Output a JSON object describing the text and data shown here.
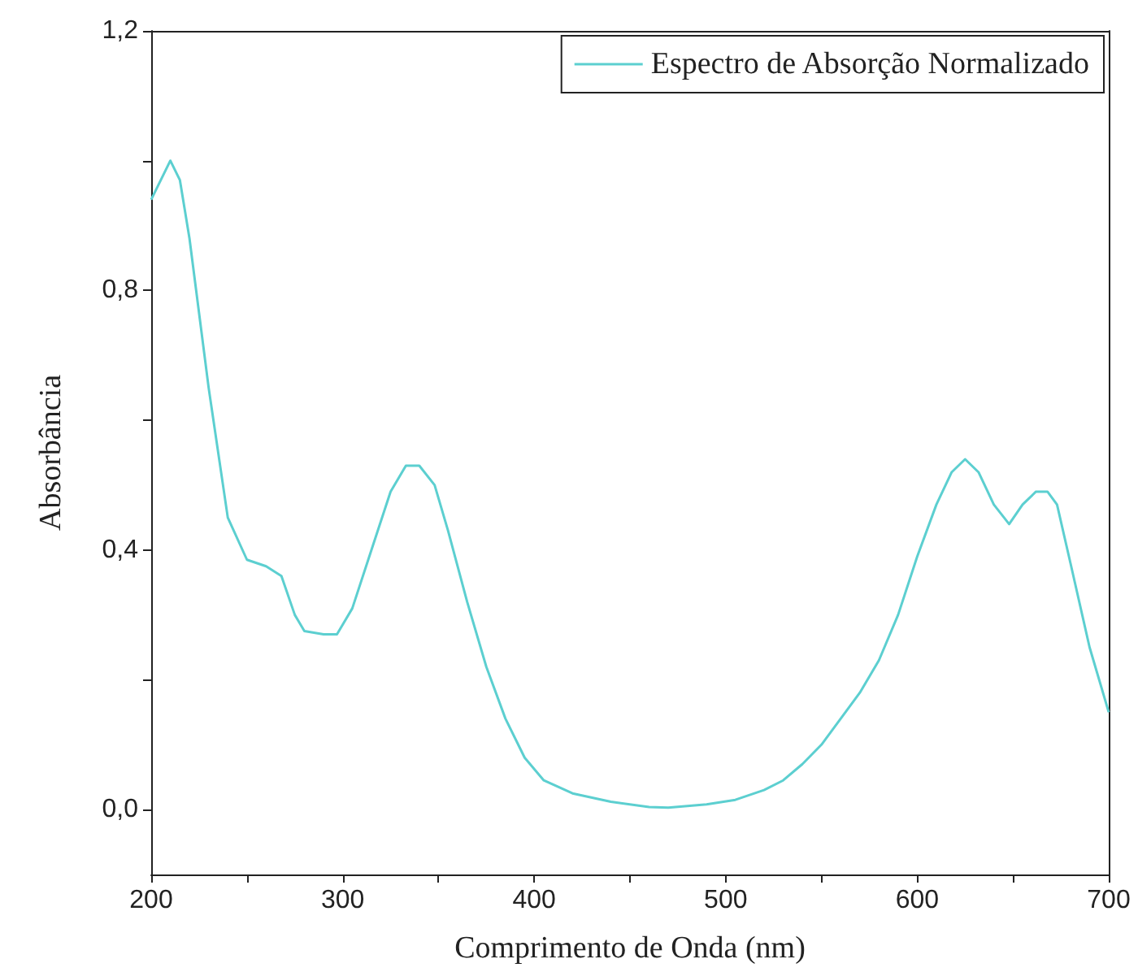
{
  "chart_data": {
    "type": "line",
    "xlabel": "Comprimento de Onda (nm)",
    "ylabel": "Absorbância",
    "legend": "top right",
    "grid": false,
    "marker": "none",
    "line_style": "solid",
    "xlim": [
      200,
      700
    ],
    "ylim": [
      -0.1,
      1.2
    ],
    "xticks": [
      200,
      {
        "value": 250,
        "label": null
      },
      300,
      {
        "value": 350,
        "label": null
      },
      400,
      {
        "value": 450,
        "label": null
      },
      500,
      {
        "value": 550,
        "label": null
      },
      600,
      {
        "value": 650,
        "label": null
      },
      700
    ],
    "yticks": [
      {
        "value": 0,
        "label": "0,0"
      },
      {
        "value": 0.2,
        "label": null
      },
      {
        "value": 0.4,
        "label": "0,4"
      },
      {
        "value": 0.6,
        "label": null
      },
      {
        "value": 0.8,
        "label": "0,8"
      },
      {
        "value": 1.0,
        "label": null
      },
      {
        "value": 1.2,
        "label": "1,2"
      }
    ],
    "series": [
      {
        "name": "Espectro de Absorção Normalizado",
        "color": "#5ccfd0",
        "x": [
          200,
          210,
          215,
          220,
          230,
          240,
          250,
          260,
          268,
          275,
          280,
          290,
          297,
          305,
          315,
          325,
          333,
          340,
          348,
          355,
          365,
          375,
          385,
          395,
          405,
          420,
          440,
          460,
          470,
          490,
          505,
          520,
          530,
          540,
          550,
          560,
          570,
          580,
          590,
          600,
          610,
          618,
          625,
          632,
          640,
          648,
          655,
          662,
          668,
          673,
          680,
          690,
          700
        ],
        "values": [
          0.94,
          1.0,
          0.97,
          0.88,
          0.65,
          0.45,
          0.385,
          0.375,
          0.36,
          0.3,
          0.275,
          0.27,
          0.27,
          0.31,
          0.4,
          0.49,
          0.53,
          0.53,
          0.5,
          0.43,
          0.32,
          0.22,
          0.14,
          0.08,
          0.045,
          0.025,
          0.012,
          0.004,
          0.003,
          0.008,
          0.015,
          0.03,
          0.045,
          0.07,
          0.1,
          0.14,
          0.18,
          0.23,
          0.3,
          0.39,
          0.47,
          0.52,
          0.54,
          0.52,
          0.47,
          0.44,
          0.47,
          0.49,
          0.49,
          0.47,
          0.38,
          0.25,
          0.15
        ]
      }
    ]
  }
}
